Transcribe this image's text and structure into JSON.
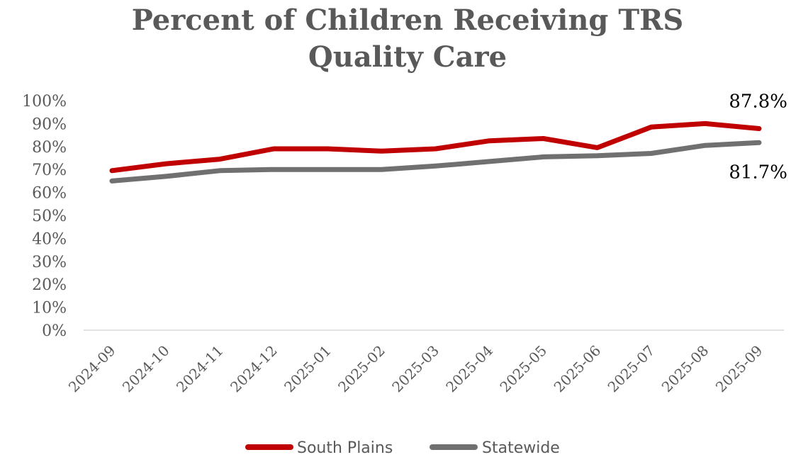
{
  "chart_data": {
    "type": "line",
    "title_lines": [
      "Percent of Children Receiving TRS",
      "Quality Care"
    ],
    "xlabel": "",
    "ylabel": "",
    "categories": [
      "2024-09",
      "2024-10",
      "2024-11",
      "2024-12",
      "2025-01",
      "2025-02",
      "2025-03",
      "2025-04",
      "2025-05",
      "2025-06",
      "2025-07",
      "2025-08",
      "2025-09"
    ],
    "ylim": [
      0,
      100
    ],
    "yticks": [
      0,
      10,
      20,
      30,
      40,
      50,
      60,
      70,
      80,
      90,
      100
    ],
    "ytick_labels": [
      "0%",
      "10%",
      "20%",
      "30%",
      "40%",
      "50%",
      "60%",
      "70%",
      "80%",
      "90%",
      "100%"
    ],
    "grid": false,
    "legend": "bottom",
    "series": [
      {
        "name": "South Plains",
        "color": "#c00000",
        "values": [
          69.5,
          72.5,
          74.5,
          79.0,
          79.0,
          78.0,
          79.0,
          82.5,
          83.5,
          79.5,
          88.5,
          90.0,
          87.8
        ],
        "end_label": "87.8%"
      },
      {
        "name": "Statewide",
        "color": "#707070",
        "values": [
          65.0,
          67.0,
          69.5,
          70.0,
          70.0,
          70.0,
          71.5,
          73.5,
          75.5,
          76.0,
          77.0,
          80.5,
          81.7
        ],
        "end_label": "81.7%"
      }
    ]
  }
}
